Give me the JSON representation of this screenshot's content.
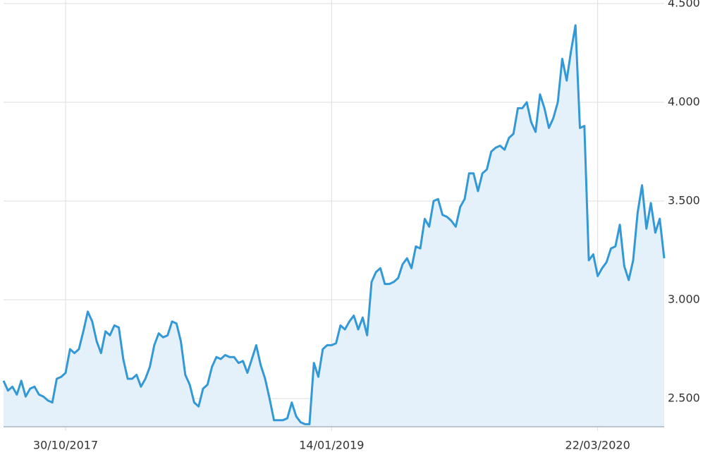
{
  "chart_data": {
    "type": "line",
    "area": true,
    "color": "#3399d6",
    "fill": "#e5f1fa",
    "grid": true,
    "y_axis_side": "right",
    "categories": [
      null,
      null,
      null,
      null,
      null,
      null,
      null,
      null,
      null,
      null,
      null,
      null,
      null,
      null,
      "30/10/2017",
      null,
      null,
      null,
      null,
      null,
      null,
      null,
      null,
      null,
      null,
      null,
      null,
      null,
      null,
      null,
      null,
      null,
      null,
      null,
      null,
      null,
      null,
      null,
      null,
      null,
      null,
      null,
      null,
      null,
      null,
      null,
      null,
      null,
      null,
      null,
      null,
      null,
      null,
      null,
      null,
      null,
      null,
      null,
      null,
      null,
      null,
      null,
      null,
      null,
      null,
      null,
      null,
      null,
      null,
      null,
      null,
      null,
      null,
      null,
      "14/01/2019",
      null,
      null,
      null,
      null,
      null,
      null,
      null,
      null,
      null,
      null,
      null,
      null,
      null,
      null,
      null,
      null,
      null,
      null,
      null,
      null,
      null,
      null,
      null,
      null,
      null,
      null,
      null,
      null,
      null,
      null,
      null,
      null,
      null,
      null,
      null,
      null,
      null,
      null,
      null,
      null,
      null,
      null,
      null,
      null,
      null,
      null,
      null,
      null,
      null,
      null,
      null,
      null,
      null,
      null,
      null,
      null,
      null,
      null,
      null,
      "22/03/2020",
      null,
      null,
      null,
      null,
      null,
      null,
      null,
      null,
      null,
      null,
      null,
      null,
      null,
      null,
      null
    ],
    "values": [
      2590,
      2540,
      2560,
      2520,
      2590,
      2510,
      2550,
      2560,
      2520,
      2510,
      2490,
      2480,
      2600,
      2610,
      2630,
      2750,
      2730,
      2750,
      2840,
      2940,
      2890,
      2790,
      2730,
      2840,
      2820,
      2870,
      2860,
      2700,
      2600,
      2600,
      2620,
      2560,
      2600,
      2660,
      2770,
      2830,
      2810,
      2820,
      2890,
      2880,
      2790,
      2620,
      2570,
      2480,
      2460,
      2550,
      2570,
      2660,
      2710,
      2700,
      2720,
      2710,
      2710,
      2680,
      2690,
      2630,
      2700,
      2770,
      2670,
      2600,
      2500,
      2390,
      2390,
      2390,
      2400,
      2480,
      2410,
      2380,
      2370,
      2370,
      2680,
      2610,
      2750,
      2770,
      2770,
      2780,
      2870,
      2850,
      2890,
      2920,
      2850,
      2910,
      2820,
      3090,
      3140,
      3160,
      3080,
      3080,
      3090,
      3110,
      3180,
      3210,
      3160,
      3270,
      3260,
      3410,
      3370,
      3500,
      3510,
      3430,
      3420,
      3400,
      3370,
      3470,
      3510,
      3640,
      3640,
      3550,
      3640,
      3660,
      3750,
      3770,
      3780,
      3760,
      3820,
      3840,
      3970,
      3970,
      4000,
      3900,
      3850,
      4040,
      3970,
      3870,
      3920,
      4000,
      4220,
      4110,
      4260,
      4390,
      3870,
      3880,
      3200,
      3230,
      3120,
      3160,
      3190,
      3260,
      3270,
      3380,
      3170,
      3100,
      3200,
      3440,
      3580,
      3360,
      3490,
      3340,
      3410,
      3210
    ],
    "ylim": [
      2357,
      4518
    ],
    "yticks": [
      {
        "value": 2500,
        "label": "2.500"
      },
      {
        "value": 3000,
        "label": "3.000"
      },
      {
        "value": 3500,
        "label": "3.500"
      },
      {
        "value": 4000,
        "label": "4.000"
      },
      {
        "value": 4500,
        "label": "4.500"
      }
    ]
  }
}
